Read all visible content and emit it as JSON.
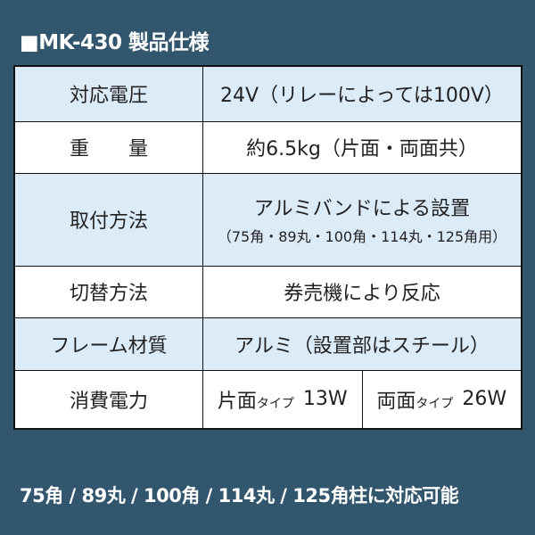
{
  "title": "■MK-430 製品仕様",
  "rows": [
    {
      "key": "対応電圧",
      "value": "24V（リレーによっては100V）"
    },
    {
      "key": "重　　量",
      "value": "約6.5kg（片面・両面共）"
    },
    {
      "key": "取付方法",
      "value": "アルミバンドによる設置",
      "note": "（75角・89丸・100角・114丸・125角用）"
    },
    {
      "key": "切替方法",
      "value": "券売機により反応"
    },
    {
      "key": "フレーム材質",
      "value": "アルミ（設置部はスチール）"
    },
    {
      "key": "消費電力",
      "single_label": "片面",
      "single_type": "タイプ",
      "single_value": "13W",
      "double_label": "両面",
      "double_type": "タイプ",
      "double_value": "26W"
    }
  ],
  "footer": "75角 / 89丸 / 100角 / 114丸 / 125角柱に対応可能"
}
